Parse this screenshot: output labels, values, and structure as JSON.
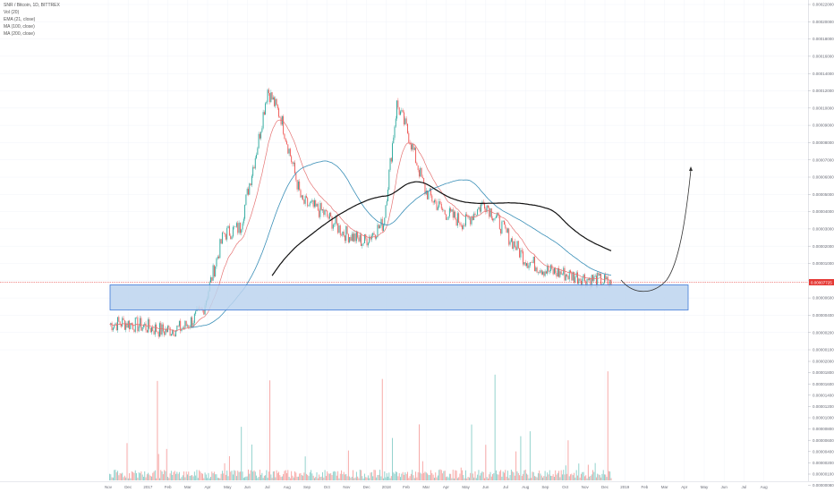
{
  "legend": {
    "title": "SNR / Bitcoin, 1D, BITTREX",
    "lines": [
      "Vol (20)",
      "EMA (21, close)",
      "MA (100, close)",
      "MA (200, close)"
    ]
  },
  "price_axis_labels": [
    "0.00022000",
    "0.00020000",
    "0.00018000",
    "0.00016000",
    "0.00014000",
    "0.00012000",
    "0.00010000",
    "0.00009000",
    "0.00008000",
    "0.00007000",
    "0.00006000",
    "0.00005000",
    "0.00004000",
    "0.00003000",
    "0.00002000",
    "0.00001000",
    "0.00000800",
    "0.00000600",
    "0.00000400",
    "0.00000200",
    "0.00000100"
  ],
  "current_price_label": "0.00007725",
  "volume_axis_labels": [
    "0.00002000",
    "0.00001800",
    "0.00001600",
    "0.00001400",
    "0.00001200",
    "0.00001000",
    "0.00000800",
    "0.00000600",
    "0.00000400",
    "0.00000200",
    "0.00000100",
    "0.00000080"
  ],
  "time_axis_labels": [
    "Nov",
    "Dec",
    "2017",
    "Feb",
    "Mar",
    "Apr",
    "May",
    "Jun",
    "Jul",
    "Aug",
    "Sep",
    "Oct",
    "Nov",
    "Dec",
    "2018",
    "Feb",
    "Mar",
    "Apr",
    "May",
    "Jun",
    "Jul",
    "Aug",
    "Sep",
    "Oct",
    "Nov",
    "Dec",
    "2019",
    "Feb",
    "Mar",
    "Apr",
    "May",
    "Jun",
    "Jul",
    "Aug"
  ],
  "colors": {
    "up": "#26a69a",
    "down": "#ef5350",
    "ema21": "#e57373",
    "ma100": "#3a8fb7",
    "ma200": "#111111",
    "zone_fill": "#bcd3ee",
    "zone_stroke": "#3c78d8",
    "current_price": "#e53935",
    "projection": "#333333"
  },
  "chart_data": {
    "type": "candlestick",
    "title": "SNR / Bitcoin, 1D, BITTREX",
    "x_range": [
      "2016-10-25",
      "2019-09-01"
    ],
    "y_scale": "log",
    "price_series": {
      "name": "SNR / Bitcoin",
      "x": [
        "2016-10-27",
        "2016-11-15",
        "2016-12-15",
        "2017-01-15",
        "2017-02-15",
        "2017-03-15",
        "2017-04-15",
        "2017-05-10",
        "2017-06-05",
        "2017-06-20",
        "2017-07-10",
        "2017-08-10",
        "2017-09-10",
        "2017-10-10",
        "2017-11-10",
        "2017-12-10",
        "2017-12-30",
        "2018-01-15",
        "2018-02-10",
        "2018-03-10",
        "2018-04-10",
        "2018-05-10",
        "2018-06-10",
        "2018-07-10",
        "2018-08-10",
        "2018-09-10",
        "2018-10-10",
        "2018-11-05",
        "2018-11-15"
      ],
      "close": [
        4.6e-05,
        4.7e-05,
        4.5e-05,
        4.2e-05,
        4.4e-05,
        5.5e-05,
        0.000155,
        0.00017,
        0.00052,
        0.0011,
        0.00075,
        0.00024,
        0.00021,
        0.00016,
        0.00014,
        0.00018,
        0.0009,
        0.00062,
        0.00028,
        0.00021,
        0.00018,
        0.00024,
        0.00016,
        0.00011,
        9.5e-05,
        9e-05,
        8.5e-05,
        8.2e-05,
        7.72e-05
      ]
    },
    "zone": {
      "x": [
        "2016-10-27",
        "2018-11-30"
      ],
      "y": [
        4.5e-05,
        6.6e-05
      ]
    },
    "projection": {
      "x": [
        "2018-11-15",
        "2018-12-15",
        "2019-02-15"
      ],
      "y": [
        7.72e-05,
        6.6e-05,
        0.00035
      ]
    },
    "current_price": 7.72e-05
  }
}
